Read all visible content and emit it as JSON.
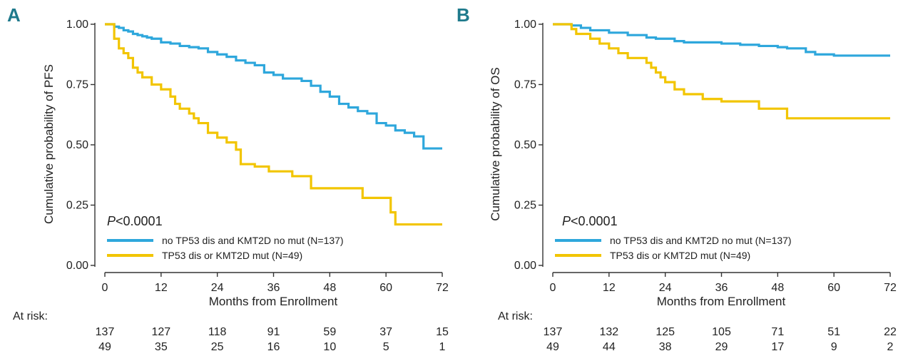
{
  "chart_data": [
    {
      "type": "line",
      "panel_label": "A",
      "xlabel": "Months from Enrollment",
      "ylabel": "Cumulative probability of PFS",
      "xlim": [
        0,
        72
      ],
      "ylim": [
        0,
        1
      ],
      "x_ticks": [
        0,
        12,
        24,
        36,
        48,
        60,
        72
      ],
      "y_ticks": [
        "0.00",
        "0.25",
        "0.50",
        "0.75",
        "1.00"
      ],
      "p_value_prefix": "P",
      "p_value_rest": "<0.0001",
      "legend_position": "bottom-left",
      "series": [
        {
          "name": "no TP53 dis and KMT2D no mut (N=137)",
          "color": "#2ea7dc",
          "x": [
            0,
            2,
            3,
            4,
            5,
            6,
            7,
            8,
            9,
            10,
            12,
            14,
            16,
            18,
            20,
            22,
            24,
            26,
            28,
            30,
            32,
            34,
            36,
            38,
            40,
            42,
            44,
            46,
            48,
            50,
            52,
            54,
            56,
            58,
            60,
            62,
            64,
            66,
            68,
            72
          ],
          "y": [
            1.0,
            0.99,
            0.985,
            0.975,
            0.97,
            0.96,
            0.955,
            0.95,
            0.945,
            0.94,
            0.925,
            0.92,
            0.91,
            0.905,
            0.9,
            0.885,
            0.875,
            0.865,
            0.85,
            0.84,
            0.83,
            0.8,
            0.79,
            0.775,
            0.775,
            0.765,
            0.745,
            0.72,
            0.7,
            0.67,
            0.655,
            0.64,
            0.63,
            0.59,
            0.58,
            0.56,
            0.55,
            0.535,
            0.485,
            0.485
          ]
        },
        {
          "name": "TP53 dis or KMT2D mut (N=49)",
          "color": "#f2c500",
          "x": [
            0,
            2,
            3,
            4,
            5,
            6,
            7,
            8,
            10,
            12,
            14,
            15,
            16,
            18,
            19,
            20,
            22,
            24,
            26,
            28,
            29,
            32,
            35,
            40,
            44,
            55,
            58,
            61,
            62,
            72
          ],
          "y": [
            1.0,
            0.94,
            0.9,
            0.88,
            0.86,
            0.82,
            0.8,
            0.78,
            0.75,
            0.73,
            0.7,
            0.67,
            0.65,
            0.63,
            0.61,
            0.59,
            0.55,
            0.53,
            0.51,
            0.48,
            0.42,
            0.41,
            0.39,
            0.37,
            0.32,
            0.28,
            0.28,
            0.22,
            0.17,
            0.17
          ]
        }
      ],
      "at_risk_label": "At risk:",
      "at_risk": [
        [
          "137",
          "127",
          "118",
          "91",
          "59",
          "37",
          "15"
        ],
        [
          "49",
          "35",
          "25",
          "16",
          "10",
          "5",
          "1"
        ]
      ]
    },
    {
      "type": "line",
      "panel_label": "B",
      "xlabel": "Months from Enrollment",
      "ylabel": "Cumulative probability of OS",
      "xlim": [
        0,
        72
      ],
      "ylim": [
        0,
        1
      ],
      "x_ticks": [
        0,
        12,
        24,
        36,
        48,
        60,
        72
      ],
      "y_ticks": [
        "0.00",
        "0.25",
        "0.50",
        "0.75",
        "1.00"
      ],
      "p_value_prefix": "P",
      "p_value_rest": "<0.0001",
      "legend_position": "bottom-left",
      "series": [
        {
          "name": "no TP53 dis and KMT2D no mut (N=137)",
          "color": "#2ea7dc",
          "x": [
            0,
            4,
            6,
            8,
            12,
            16,
            20,
            22,
            26,
            28,
            32,
            36,
            40,
            44,
            48,
            50,
            54,
            56,
            60,
            72
          ],
          "y": [
            1.0,
            0.995,
            0.985,
            0.975,
            0.965,
            0.955,
            0.945,
            0.94,
            0.93,
            0.925,
            0.925,
            0.92,
            0.915,
            0.91,
            0.905,
            0.9,
            0.885,
            0.875,
            0.87,
            0.87
          ]
        },
        {
          "name": "TP53 dis or KMT2D mut (N=49)",
          "color": "#f2c500",
          "x": [
            0,
            4,
            5,
            8,
            10,
            12,
            14,
            16,
            20,
            21,
            22,
            23,
            24,
            26,
            28,
            32,
            36,
            44,
            50,
            72
          ],
          "y": [
            1.0,
            0.98,
            0.96,
            0.94,
            0.92,
            0.9,
            0.88,
            0.86,
            0.84,
            0.82,
            0.8,
            0.78,
            0.76,
            0.73,
            0.71,
            0.69,
            0.68,
            0.65,
            0.61,
            0.61
          ]
        }
      ],
      "at_risk_label": "At risk:",
      "at_risk": [
        [
          "137",
          "132",
          "125",
          "105",
          "71",
          "51",
          "22"
        ],
        [
          "49",
          "44",
          "38",
          "29",
          "17",
          "9",
          "2"
        ]
      ]
    }
  ]
}
